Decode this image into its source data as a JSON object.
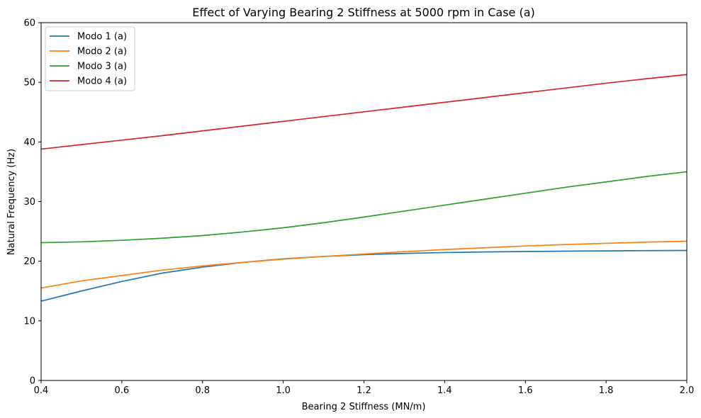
{
  "chart_data": {
    "type": "line",
    "title": "Effect of Varying Bearing 2 Stiffness at 5000 rpm in Case (a)",
    "xlabel": "Bearing 2 Stiffness (MN/m)",
    "ylabel": "Natural Frequency (Hz)",
    "xlim": [
      0.4,
      2.0
    ],
    "ylim": [
      0,
      60
    ],
    "xticks": [
      "0.4",
      "0.6",
      "0.8",
      "1.0",
      "1.2",
      "1.4",
      "1.6",
      "1.8",
      "2.0"
    ],
    "yticks": [
      "0",
      "10",
      "20",
      "30",
      "40",
      "50",
      "60"
    ],
    "grid": false,
    "legend_position": "top-left",
    "x": [
      0.4,
      0.5,
      0.6,
      0.7,
      0.8,
      0.9,
      1.0,
      1.1,
      1.2,
      1.3,
      1.4,
      1.5,
      1.6,
      1.7,
      1.8,
      1.9,
      2.0
    ],
    "series": [
      {
        "name": "Modo 1 (a)",
        "color": "#1f77b4",
        "values": [
          13.3,
          15.0,
          16.6,
          18.0,
          19.0,
          19.8,
          20.4,
          20.8,
          21.1,
          21.3,
          21.45,
          21.55,
          21.62,
          21.68,
          21.73,
          21.77,
          21.8
        ]
      },
      {
        "name": "Modo 2 (a)",
        "color": "#ff7f0e",
        "values": [
          15.5,
          16.7,
          17.6,
          18.5,
          19.2,
          19.8,
          20.35,
          20.8,
          21.2,
          21.6,
          21.95,
          22.25,
          22.55,
          22.8,
          23.0,
          23.2,
          23.35
        ]
      },
      {
        "name": "Modo 3 (a)",
        "color": "#2ca02c",
        "values": [
          23.1,
          23.25,
          23.5,
          23.85,
          24.3,
          24.9,
          25.6,
          26.45,
          27.4,
          28.4,
          29.4,
          30.4,
          31.4,
          32.4,
          33.3,
          34.2,
          35.0
        ]
      },
      {
        "name": "Modo 4 (a)",
        "color": "#d62728",
        "values": [
          38.8,
          39.55,
          40.3,
          41.05,
          41.85,
          42.65,
          43.45,
          44.25,
          45.05,
          45.85,
          46.65,
          47.45,
          48.25,
          49.05,
          49.85,
          50.6,
          51.3
        ]
      }
    ]
  }
}
